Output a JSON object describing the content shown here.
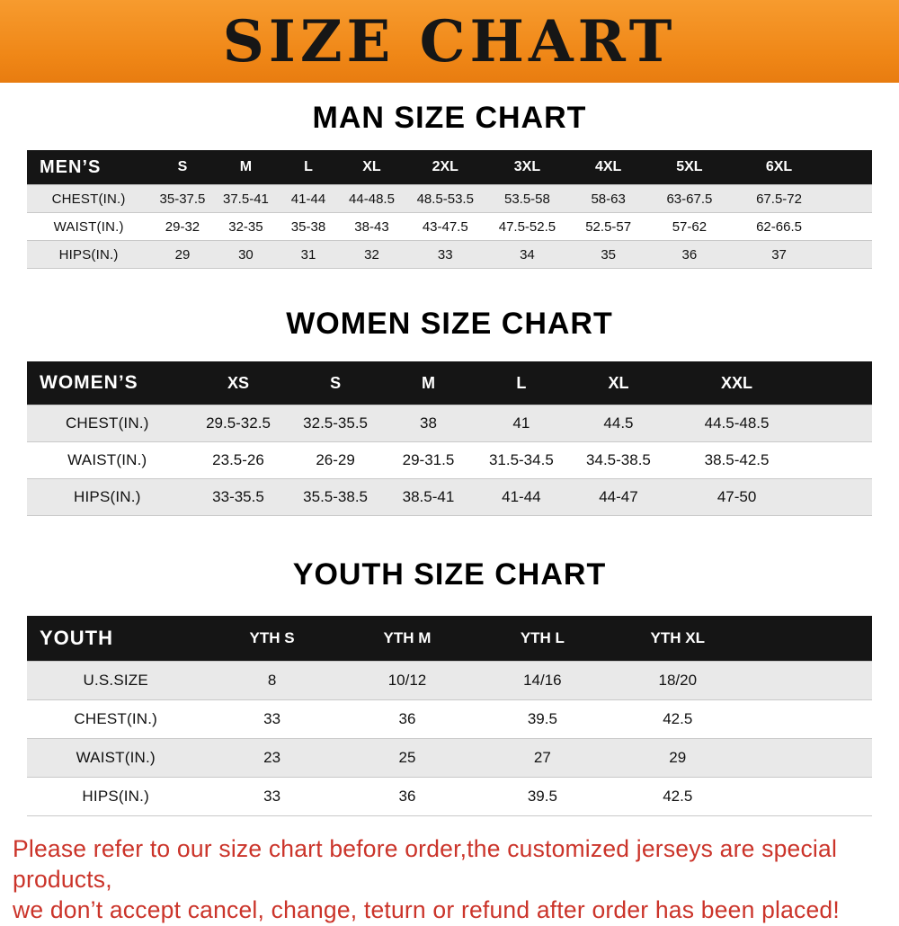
{
  "banner": {
    "title": "SIZE CHART"
  },
  "colors": {
    "banner_orange": "#ef8616",
    "header_black": "#151515",
    "row_stripe_gray": "#e9e9e9",
    "footer_red": "#cb342a"
  },
  "chart_data": [
    {
      "type": "table",
      "title": "MAN SIZE CHART",
      "header": [
        "MEN’S",
        "S",
        "M",
        "L",
        "XL",
        "2XL",
        "3XL",
        "4XL",
        "5XL",
        "6XL"
      ],
      "rows": [
        [
          "CHEST(IN.)",
          "35-37.5",
          "37.5-41",
          "41-44",
          "44-48.5",
          "48.5-53.5",
          "53.5-58",
          "58-63",
          "63-67.5",
          "67.5-72"
        ],
        [
          "WAIST(IN.)",
          "29-32",
          "32-35",
          "35-38",
          "38-43",
          "43-47.5",
          "47.5-52.5",
          "52.5-57",
          "57-62",
          "62-66.5"
        ],
        [
          "HIPS(IN.)",
          "29",
          "30",
          "31",
          "32",
          "33",
          "34",
          "35",
          "36",
          "37"
        ]
      ]
    },
    {
      "type": "table",
      "title": "WOMEN SIZE CHART",
      "header": [
        "WOMEN’S",
        "XS",
        "S",
        "M",
        "L",
        "XL",
        "XXL"
      ],
      "rows": [
        [
          "CHEST(IN.)",
          "29.5-32.5",
          "32.5-35.5",
          "38",
          "41",
          "44.5",
          "44.5-48.5"
        ],
        [
          "WAIST(IN.)",
          "23.5-26",
          "26-29",
          "29-31.5",
          "31.5-34.5",
          "34.5-38.5",
          "38.5-42.5"
        ],
        [
          "HIPS(IN.)",
          "33-35.5",
          "35.5-38.5",
          "38.5-41",
          "41-44",
          "44-47",
          "47-50"
        ]
      ]
    },
    {
      "type": "table",
      "title": "YOUTH SIZE CHART",
      "header": [
        "YOUTH",
        "YTH S",
        "YTH M",
        "YTH L",
        "YTH XL"
      ],
      "rows": [
        [
          "U.S.SIZE",
          "8",
          "10/12",
          "14/16",
          "18/20"
        ],
        [
          "CHEST(IN.)",
          "33",
          "36",
          "39.5",
          "42.5"
        ],
        [
          "WAIST(IN.)",
          "23",
          "25",
          "27",
          "29"
        ],
        [
          "HIPS(IN.)",
          "33",
          "36",
          "39.5",
          "42.5"
        ]
      ]
    }
  ],
  "footer": {
    "line1": "Please refer to our size chart before order,the customized jerseys are special products,",
    "line2": "we don’t accept cancel, change, teturn or refund after order has been placed!"
  }
}
